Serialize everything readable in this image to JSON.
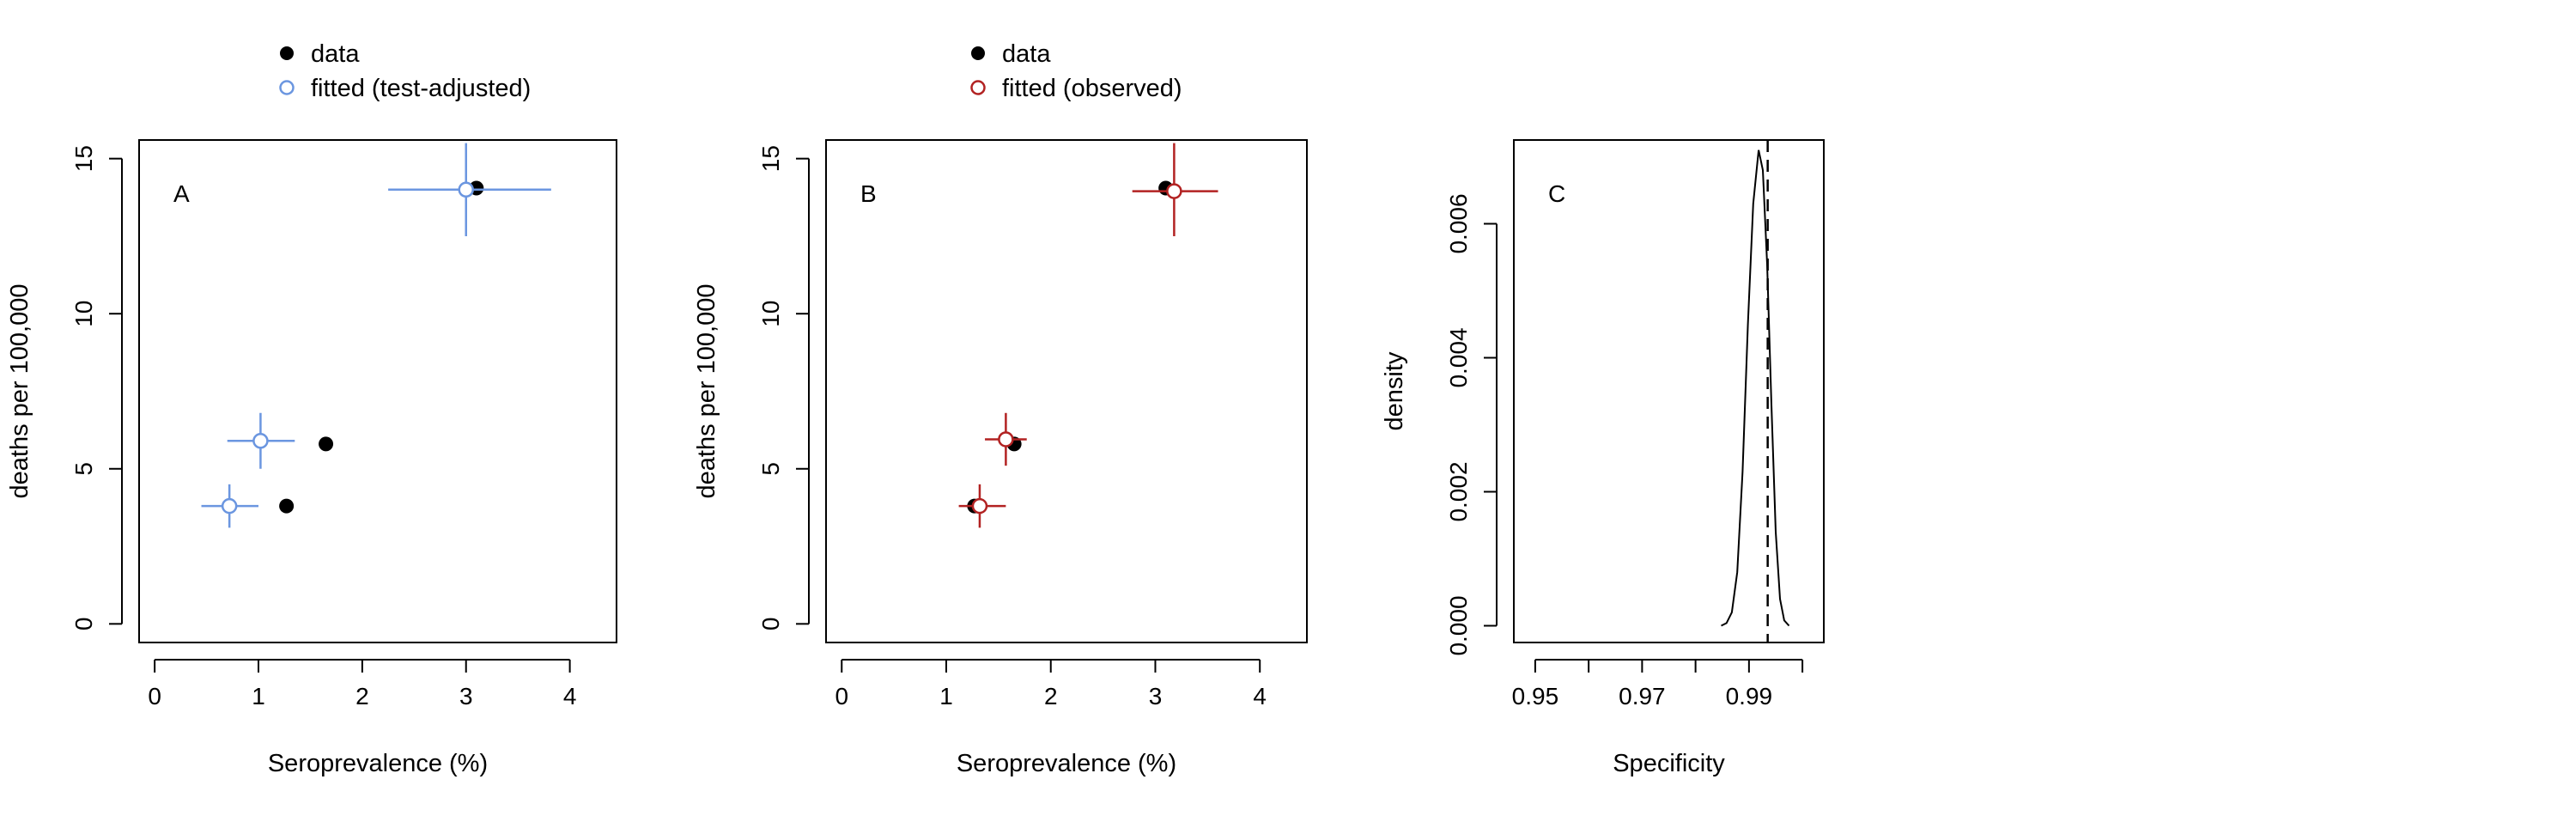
{
  "chart_data": [
    {
      "type": "scatter",
      "panel_label": "A",
      "xlabel": "Seroprevalence (%)",
      "ylabel": "deaths per 100,000",
      "xlim": [
        -0.15,
        4.45
      ],
      "ylim": [
        -0.6,
        15.6
      ],
      "x_ticks": [
        "0",
        "1",
        "2",
        "3",
        "4"
      ],
      "y_ticks": [
        "0",
        "5",
        "10",
        "15"
      ],
      "legend": {
        "position": "top-left (above plot)",
        "entries": [
          "data",
          "fitted (test-adjusted)"
        ]
      },
      "series": [
        {
          "name": "data",
          "marker": "filled-circle",
          "color": "#000000",
          "points": [
            {
              "x": 1.27,
              "y": 3.8
            },
            {
              "x": 1.65,
              "y": 5.8
            },
            {
              "x": 3.1,
              "y": 14.05
            }
          ]
        },
        {
          "name": "fitted (test-adjusted)",
          "marker": "open-circle",
          "color": "#6b96e0",
          "points": [
            {
              "x": 0.72,
              "y": 3.8,
              "x_err": [
                0.45,
                1.0
              ],
              "y_err": [
                3.1,
                4.5
              ]
            },
            {
              "x": 1.02,
              "y": 5.9,
              "x_err": [
                0.7,
                1.35
              ],
              "y_err": [
                5.0,
                6.8
              ]
            },
            {
              "x": 3.0,
              "y": 14.0,
              "x_err": [
                2.25,
                3.82
              ],
              "y_err": [
                12.5,
                15.5
              ]
            }
          ]
        }
      ]
    },
    {
      "type": "scatter",
      "panel_label": "B",
      "xlabel": "Seroprevalence (%)",
      "ylabel": "deaths per 100,000",
      "xlim": [
        -0.15,
        4.45
      ],
      "ylim": [
        -0.6,
        15.6
      ],
      "x_ticks": [
        "0",
        "1",
        "2",
        "3",
        "4"
      ],
      "y_ticks": [
        "0",
        "5",
        "10",
        "15"
      ],
      "legend": {
        "position": "top-left (above plot)",
        "entries": [
          "data",
          "fitted (observed)"
        ]
      },
      "series": [
        {
          "name": "data",
          "marker": "filled-circle",
          "color": "#000000",
          "points": [
            {
              "x": 1.27,
              "y": 3.8
            },
            {
              "x": 1.65,
              "y": 5.8
            },
            {
              "x": 3.1,
              "y": 14.05
            }
          ]
        },
        {
          "name": "fitted (observed)",
          "marker": "open-circle",
          "color": "#b22222",
          "points": [
            {
              "x": 1.32,
              "y": 3.8,
              "x_err": [
                1.12,
                1.57
              ],
              "y_err": [
                3.1,
                4.5
              ]
            },
            {
              "x": 1.57,
              "y": 5.95,
              "x_err": [
                1.37,
                1.77
              ],
              "y_err": [
                5.1,
                6.8
              ]
            },
            {
              "x": 3.18,
              "y": 13.95,
              "x_err": [
                2.78,
                3.6
              ],
              "y_err": [
                12.5,
                15.5
              ]
            }
          ]
        }
      ]
    },
    {
      "type": "line",
      "panel_label": "C",
      "xlabel": "Specificity",
      "ylabel": "density",
      "xlim": [
        0.946,
        1.004
      ],
      "ylim": [
        -0.00025,
        0.00725
      ],
      "x_ticks": [
        "0.95",
        "0.97",
        "0.99"
      ],
      "x_tick_values": [
        0.95,
        0.96,
        0.97,
        0.98,
        0.99,
        1.0
      ],
      "y_ticks": [
        "0.000",
        "0.002",
        "0.004",
        "0.006"
      ],
      "vline": {
        "x": 0.9935,
        "style": "dashed"
      },
      "series": [
        {
          "name": "",
          "color": "#000000",
          "points": [
            {
              "x": 0.9848,
              "y": 0.0
            },
            {
              "x": 0.9858,
              "y": 4e-05
            },
            {
              "x": 0.9868,
              "y": 0.0002
            },
            {
              "x": 0.9878,
              "y": 0.0008
            },
            {
              "x": 0.9888,
              "y": 0.0023
            },
            {
              "x": 0.9898,
              "y": 0.0045
            },
            {
              "x": 0.9908,
              "y": 0.0063
            },
            {
              "x": 0.9918,
              "y": 0.0071
            },
            {
              "x": 0.9926,
              "y": 0.0068
            },
            {
              "x": 0.9934,
              "y": 0.0054
            },
            {
              "x": 0.9942,
              "y": 0.0033
            },
            {
              "x": 0.995,
              "y": 0.0014
            },
            {
              "x": 0.9958,
              "y": 0.0004
            },
            {
              "x": 0.9966,
              "y": 8e-05
            },
            {
              "x": 0.9975,
              "y": 0.0
            }
          ]
        }
      ]
    }
  ]
}
